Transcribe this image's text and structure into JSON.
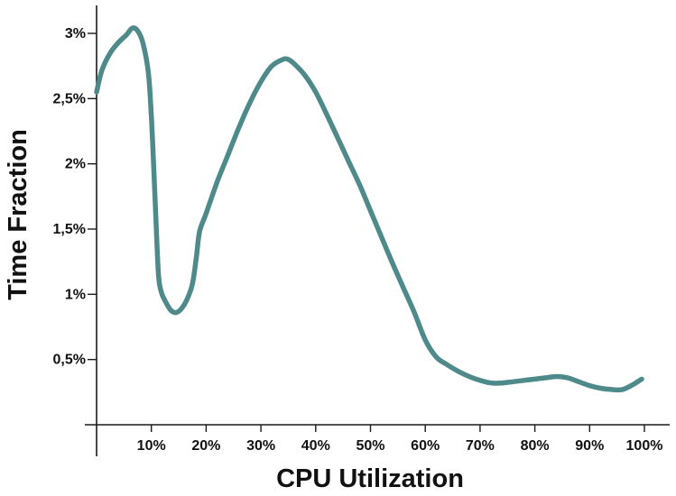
{
  "chart_data": {
    "type": "line",
    "xlabel": "CPU Utilization",
    "ylabel": "Time Fraction",
    "xlim": [
      0,
      100
    ],
    "ylim": [
      0,
      3.3
    ],
    "x_ticks": [
      10,
      20,
      30,
      40,
      50,
      60,
      70,
      80,
      90,
      100
    ],
    "x_tick_labels": [
      "10%",
      "20%",
      "30%",
      "40%",
      "50%",
      "60%",
      "70%",
      "80%",
      "90%",
      "100%"
    ],
    "y_ticks": [
      0.5,
      1,
      1.5,
      2,
      2.5,
      3
    ],
    "y_tick_labels": [
      "0,5%",
      "1%",
      "1,5%",
      "2%",
      "2,5%",
      "3%"
    ],
    "grid": false,
    "line_color": "#4f8a8b",
    "series": [
      {
        "x": [
          0,
          1,
          2.5,
          4,
          5.5,
          6.5,
          7.5,
          8.5,
          9.5,
          10.2,
          10.8,
          11.3,
          11.8,
          12.5,
          13.5,
          14.5,
          15.5,
          16.5,
          17.5,
          18.2,
          18.8,
          20,
          22,
          24,
          26,
          28,
          30,
          32,
          34,
          35,
          36,
          38,
          40,
          42,
          44,
          46,
          48,
          50,
          52,
          54,
          56,
          58,
          60,
          62,
          64,
          66,
          68,
          70,
          72,
          74,
          76,
          78,
          80,
          82,
          84,
          86,
          88,
          90,
          92,
          94,
          96,
          98,
          99.5
        ],
        "y": [
          2.55,
          2.72,
          2.85,
          2.93,
          2.99,
          3.04,
          3.02,
          2.92,
          2.68,
          2.2,
          1.6,
          1.15,
          1.02,
          0.95,
          0.88,
          0.86,
          0.89,
          0.96,
          1.08,
          1.28,
          1.48,
          1.62,
          1.86,
          2.07,
          2.28,
          2.47,
          2.63,
          2.75,
          2.8,
          2.8,
          2.77,
          2.68,
          2.55,
          2.38,
          2.2,
          2.02,
          1.84,
          1.64,
          1.44,
          1.24,
          1.05,
          0.86,
          0.65,
          0.52,
          0.46,
          0.41,
          0.37,
          0.34,
          0.32,
          0.32,
          0.33,
          0.34,
          0.35,
          0.36,
          0.37,
          0.36,
          0.33,
          0.3,
          0.28,
          0.27,
          0.27,
          0.31,
          0.35
        ]
      }
    ]
  }
}
